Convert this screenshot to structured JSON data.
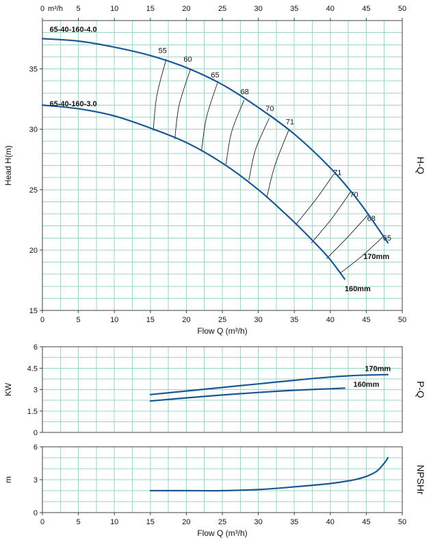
{
  "theme": {
    "background": "#ffffff",
    "grid_color": "#9ed3bd",
    "border_color": "#3f3f3f",
    "curve_color": "#1a5894",
    "efficiency_line_color": "#1f1f1f",
    "text_color": "#111111"
  },
  "chart_data": [
    {
      "id": "hq",
      "type": "line",
      "right_label": "H-Q",
      "ylabel": "Head H(m)",
      "xlabel": "Flow Q (m³/h)",
      "xlim": [
        0,
        50
      ],
      "ylim": [
        15,
        39
      ],
      "x_grid_step": 2.5,
      "y_grid_step": 1,
      "grid": true,
      "y_ticks": [
        [
          15,
          "15"
        ],
        [
          20,
          "20"
        ],
        [
          25,
          "25"
        ],
        [
          30,
          "30"
        ],
        [
          35,
          "35"
        ]
      ],
      "x_ticks": [
        [
          0,
          "0"
        ],
        [
          5,
          "5"
        ],
        [
          10,
          "10"
        ],
        [
          15,
          "15"
        ],
        [
          20,
          "20"
        ],
        [
          25,
          "25"
        ],
        [
          30,
          "30"
        ],
        [
          35,
          "35"
        ],
        [
          40,
          "40"
        ],
        [
          45,
          "45"
        ],
        [
          50,
          "50"
        ]
      ],
      "top_axis": {
        "unit": "m³/h",
        "ticks": [
          [
            0,
            "0"
          ],
          [
            5,
            "5"
          ],
          [
            10,
            "10"
          ],
          [
            15,
            "15"
          ],
          [
            20,
            "20"
          ],
          [
            25,
            "25"
          ],
          [
            30,
            "30"
          ],
          [
            35,
            "35"
          ],
          [
            40,
            "40"
          ],
          [
            45,
            "45"
          ],
          [
            50,
            "50"
          ]
        ]
      },
      "series": [
        {
          "name": "head-170mm",
          "curve_label": "65-40-160-4.0",
          "curve_label_pos": [
            1.0,
            38.05
          ],
          "end_label": "170mm",
          "end_label_pos": [
            44.6,
            19.25
          ],
          "points": [
            [
              0,
              37.5
            ],
            [
              5,
              37.3
            ],
            [
              10,
              36.8
            ],
            [
              15,
              36.1
            ],
            [
              20,
              35.1
            ],
            [
              25,
              33.7
            ],
            [
              30,
              31.8
            ],
            [
              35,
              29.6
            ],
            [
              40,
              26.8
            ],
            [
              44,
              24.0
            ],
            [
              48,
              20.6
            ]
          ]
        },
        {
          "name": "head-160mm",
          "curve_label": "65-40-160-3.0",
          "curve_label_pos": [
            1.0,
            31.9
          ],
          "end_label": "160mm",
          "end_label_pos": [
            42.0,
            16.6
          ],
          "points": [
            [
              0,
              32.0
            ],
            [
              5,
              31.7
            ],
            [
              10,
              31.1
            ],
            [
              15,
              30.1
            ],
            [
              20,
              28.9
            ],
            [
              25,
              27.2
            ],
            [
              30,
              25.0
            ],
            [
              35,
              22.3
            ],
            [
              38,
              20.5
            ],
            [
              40,
              19.2
            ],
            [
              42,
              17.6
            ]
          ]
        }
      ],
      "efficiency_lines": [
        {
          "label": "55",
          "points": [
            [
              15.4,
              29.9
            ],
            [
              15.9,
              32.8
            ],
            [
              17.2,
              35.8
            ]
          ],
          "label_pos": [
            16.7,
            36.3
          ]
        },
        {
          "label": "60",
          "points": [
            [
              18.4,
              29.2
            ],
            [
              19.0,
              32.0
            ],
            [
              20.6,
              35.0
            ]
          ],
          "label_pos": [
            20.2,
            35.6
          ]
        },
        {
          "label": "65",
          "points": [
            [
              22.1,
              28.2
            ],
            [
              22.8,
              31.0
            ],
            [
              24.3,
              33.8
            ]
          ],
          "label_pos": [
            24.0,
            34.3
          ]
        },
        {
          "label": "68",
          "points": [
            [
              25.5,
              27.1
            ],
            [
              26.3,
              29.8
            ],
            [
              28.0,
              32.4
            ]
          ],
          "label_pos": [
            28.1,
            32.9
          ]
        },
        {
          "label": "70",
          "points": [
            [
              28.7,
              25.8
            ],
            [
              29.6,
              28.3
            ],
            [
              31.5,
              30.9
            ]
          ],
          "label_pos": [
            31.6,
            31.5
          ]
        },
        {
          "label": "71",
          "points": [
            [
              31.2,
              24.4
            ],
            [
              32.3,
              27.0
            ],
            [
              34.2,
              29.9
            ]
          ],
          "label_pos": [
            34.4,
            30.4
          ]
        },
        {
          "label": "71",
          "points": [
            [
              35.2,
              22.1
            ],
            [
              38.0,
              24.2
            ],
            [
              40.5,
              26.3
            ]
          ],
          "label_pos": [
            41.0,
            26.2
          ]
        },
        {
          "label": "70",
          "points": [
            [
              37.4,
              20.6
            ],
            [
              40.2,
              22.6
            ],
            [
              42.8,
              24.8
            ]
          ],
          "label_pos": [
            43.3,
            24.4
          ]
        },
        {
          "label": "68",
          "points": [
            [
              39.5,
              19.3
            ],
            [
              42.3,
              21.0
            ],
            [
              45.2,
              22.9
            ]
          ],
          "label_pos": [
            45.7,
            22.4
          ]
        },
        {
          "label": "65",
          "points": [
            [
              41.4,
              18.1
            ],
            [
              44.4,
              19.5
            ],
            [
              47.5,
              21.2
            ]
          ],
          "label_pos": [
            47.9,
            20.8
          ]
        }
      ]
    },
    {
      "id": "pq",
      "type": "line",
      "right_label": "P-Q",
      "ylabel": "KW",
      "xlim": [
        0,
        50
      ],
      "ylim": [
        0,
        6
      ],
      "x_grid_step": 2.5,
      "y_grid_step": 0.75,
      "grid": true,
      "y_ticks": [
        [
          0,
          "0"
        ],
        [
          1.5,
          "1.5"
        ],
        [
          3,
          "3"
        ],
        [
          4.5,
          "4.5"
        ],
        [
          6,
          "6"
        ]
      ],
      "series": [
        {
          "name": "power-170mm",
          "end_label": "170mm",
          "end_label_pos": [
            44.8,
            4.3
          ],
          "points": [
            [
              15,
              2.65
            ],
            [
              20,
              2.9
            ],
            [
              25,
              3.15
            ],
            [
              30,
              3.4
            ],
            [
              35,
              3.65
            ],
            [
              40,
              3.88
            ],
            [
              44,
              4.0
            ],
            [
              48,
              4.05
            ]
          ]
        },
        {
          "name": "power-160mm",
          "end_label": "160mm",
          "end_label_pos": [
            43.2,
            3.2
          ],
          "points": [
            [
              15,
              2.2
            ],
            [
              20,
              2.42
            ],
            [
              25,
              2.62
            ],
            [
              30,
              2.8
            ],
            [
              35,
              2.95
            ],
            [
              40,
              3.06
            ],
            [
              42,
              3.1
            ]
          ]
        }
      ]
    },
    {
      "id": "npshr",
      "type": "line",
      "right_label": "NPSHr",
      "ylabel": "m",
      "xlabel": "Flow Q (m³/h)",
      "xlim": [
        0,
        50
      ],
      "ylim": [
        0,
        6
      ],
      "x_grid_step": 2.5,
      "y_grid_step": 1,
      "grid": true,
      "y_ticks": [
        [
          0,
          "0"
        ],
        [
          3,
          "3"
        ],
        [
          6,
          "6"
        ]
      ],
      "x_ticks": [
        [
          0,
          "0"
        ],
        [
          5,
          "5"
        ],
        [
          10,
          "10"
        ],
        [
          15,
          "15"
        ],
        [
          20,
          "20"
        ],
        [
          25,
          "25"
        ],
        [
          30,
          "30"
        ],
        [
          35,
          "35"
        ],
        [
          40,
          "40"
        ],
        [
          45,
          "45"
        ],
        [
          50,
          "50"
        ]
      ],
      "series": [
        {
          "name": "npshr-curve",
          "points": [
            [
              15,
              2.0
            ],
            [
              20,
              2.0
            ],
            [
              25,
              2.0
            ],
            [
              30,
              2.1
            ],
            [
              35,
              2.35
            ],
            [
              40,
              2.65
            ],
            [
              43,
              2.95
            ],
            [
              45,
              3.3
            ],
            [
              46.5,
              3.8
            ],
            [
              47.6,
              4.6
            ],
            [
              48,
              5.0
            ]
          ]
        }
      ]
    }
  ]
}
